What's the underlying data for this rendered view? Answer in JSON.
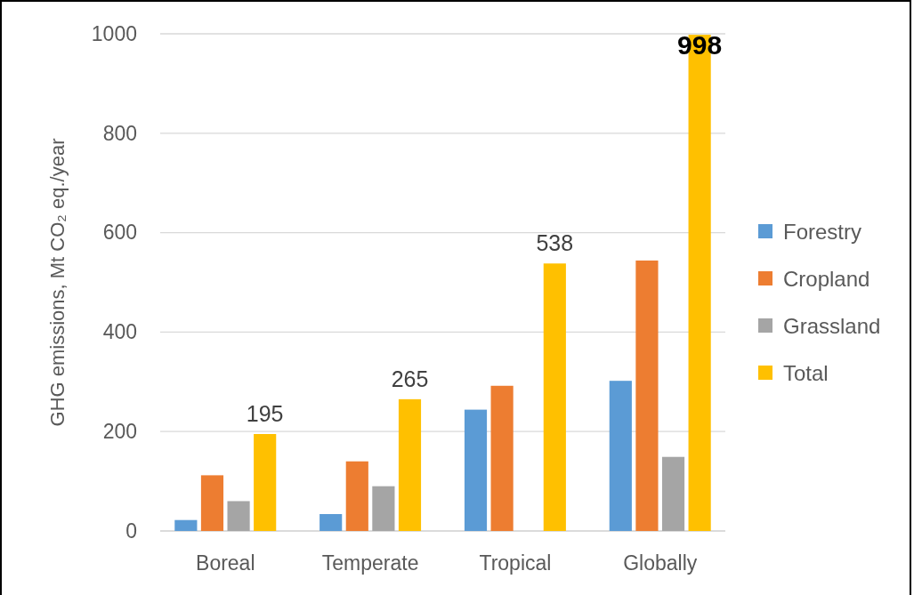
{
  "chart_data": {
    "type": "bar",
    "ylabel": "GHG emissions, Mt CO₂ eq./year",
    "categories": [
      "Boreal",
      "Temperate",
      "Tropical",
      "Globally"
    ],
    "series": [
      {
        "name": "Forestry",
        "color": "#5b9bd5",
        "values": [
          22,
          34,
          244,
          302
        ]
      },
      {
        "name": "Cropland",
        "color": "#ed7d31",
        "values": [
          112,
          140,
          292,
          544
        ]
      },
      {
        "name": "Grassland",
        "color": "#a5a5a5",
        "values": [
          60,
          90,
          null,
          149
        ]
      },
      {
        "name": "Total",
        "color": "#ffc000",
        "values": [
          195,
          265,
          538,
          998
        ],
        "value_labels": [
          "195",
          "265",
          "538",
          "998"
        ]
      }
    ],
    "ylim": [
      0,
      1000
    ],
    "yticks": [
      0,
      200,
      400,
      600,
      800,
      1000
    ],
    "grid": "y",
    "legend": "right"
  }
}
